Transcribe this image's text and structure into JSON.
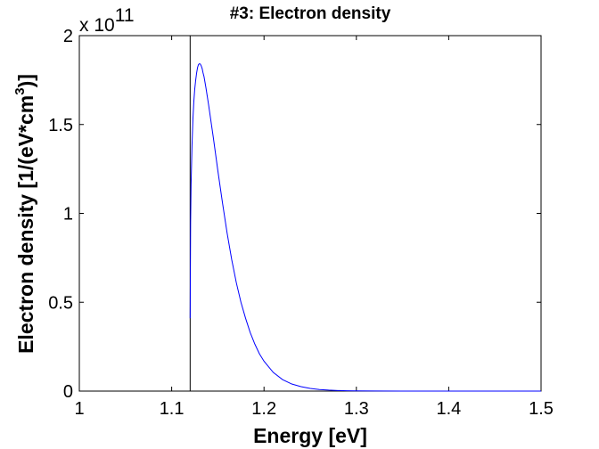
{
  "chart_data": {
    "type": "line",
    "title": "#3: Electron density",
    "xlabel": "Energy [eV]",
    "ylabel_main": "Electron density [1/(eV*cm",
    "ylabel_sup": "3",
    "ylabel_end": ")]",
    "y_multiplier": "x 10",
    "y_multiplier_exp": "11",
    "xlim": [
      1,
      1.5
    ],
    "ylim": [
      0,
      2
    ],
    "xticks": [
      "1",
      "1.1",
      "1.2",
      "1.3",
      "1.4",
      "1.5"
    ],
    "yticks": [
      "0",
      "0.5",
      "1",
      "1.5",
      "2"
    ],
    "vline_x": 1.12,
    "grid": false,
    "line_color": "#0000ff",
    "series": [
      {
        "x": [
          1.12,
          1.1205,
          1.121,
          1.122,
          1.123,
          1.124,
          1.125,
          1.126,
          1.127,
          1.128,
          1.129,
          1.13,
          1.131,
          1.132,
          1.133,
          1.134,
          1.135,
          1.137,
          1.14,
          1.145,
          1.15,
          1.155,
          1.16,
          1.165,
          1.17,
          1.175,
          1.18,
          1.185,
          1.19,
          1.195,
          1.2,
          1.21,
          1.22,
          1.23,
          1.24,
          1.25,
          1.26,
          1.27,
          1.28,
          1.29,
          1.3,
          1.32,
          1.35,
          1.4,
          1.45,
          1.5
        ],
        "y": [
          0.41,
          0.95,
          1.16,
          1.38,
          1.53,
          1.63,
          1.7,
          1.75,
          1.79,
          1.82,
          1.837,
          1.842,
          1.84,
          1.83,
          1.815,
          1.79,
          1.77,
          1.71,
          1.61,
          1.43,
          1.24,
          1.06,
          0.89,
          0.74,
          0.61,
          0.5,
          0.41,
          0.33,
          0.265,
          0.21,
          0.168,
          0.105,
          0.065,
          0.04,
          0.025,
          0.015,
          0.009,
          0.0055,
          0.0033,
          0.002,
          0.0012,
          0.0004,
          0.0001,
          0.0,
          0.0,
          0.0
        ]
      }
    ]
  }
}
